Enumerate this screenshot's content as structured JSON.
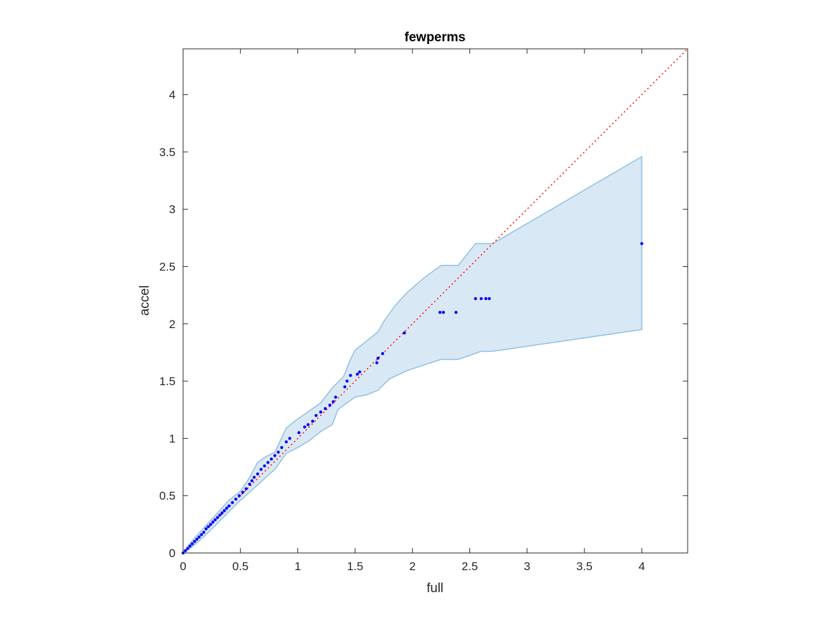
{
  "chart_data": {
    "type": "scatter",
    "title": "fewperms",
    "xlabel": "full",
    "ylabel": "accel",
    "xlim": [
      0,
      4.4
    ],
    "ylim": [
      0,
      4.4
    ],
    "xticks": [
      0,
      0.5,
      1,
      1.5,
      2,
      2.5,
      3,
      3.5,
      4
    ],
    "yticks": [
      0,
      0.5,
      1,
      1.5,
      2,
      2.5,
      3,
      3.5,
      4
    ],
    "xtick_labels": [
      "0",
      "0.5",
      "1",
      "1.5",
      "2",
      "2.5",
      "3",
      "3.5",
      "4"
    ],
    "ytick_labels": [
      "0",
      "0.5",
      "1",
      "1.5",
      "2",
      "2.5",
      "3",
      "3.5",
      "4"
    ],
    "grid": false,
    "colors": {
      "points": "#0000ff",
      "reference_line": "#ff0000",
      "band_fill": "#d9e8f5",
      "band_edge": "#8fc0e0",
      "axes": "#262626"
    },
    "reference_line": {
      "style": "dotted",
      "x": [
        0,
        4.4
      ],
      "y": [
        0,
        4.4
      ]
    },
    "band": {
      "upper": [
        [
          0,
          0
        ],
        [
          0.05,
          0.07
        ],
        [
          0.1,
          0.13
        ],
        [
          0.2,
          0.24
        ],
        [
          0.3,
          0.35
        ],
        [
          0.4,
          0.46
        ],
        [
          0.5,
          0.54
        ],
        [
          0.58,
          0.66
        ],
        [
          0.65,
          0.79
        ],
        [
          0.72,
          0.84
        ],
        [
          0.8,
          0.88
        ],
        [
          0.9,
          1.09
        ],
        [
          1.0,
          1.17
        ],
        [
          1.1,
          1.24
        ],
        [
          1.2,
          1.31
        ],
        [
          1.3,
          1.44
        ],
        [
          1.4,
          1.54
        ],
        [
          1.45,
          1.67
        ],
        [
          1.5,
          1.77
        ],
        [
          1.55,
          1.81
        ],
        [
          1.7,
          1.93
        ],
        [
          1.75,
          2.02
        ],
        [
          1.85,
          2.16
        ],
        [
          1.95,
          2.27
        ],
        [
          2.1,
          2.4
        ],
        [
          2.25,
          2.51
        ],
        [
          2.4,
          2.51
        ],
        [
          2.55,
          2.7
        ],
        [
          2.7,
          2.7
        ],
        [
          4.0,
          3.46
        ]
      ],
      "lower": [
        [
          0,
          0
        ],
        [
          0.05,
          0.03
        ],
        [
          0.1,
          0.07
        ],
        [
          0.2,
          0.16
        ],
        [
          0.3,
          0.26
        ],
        [
          0.4,
          0.36
        ],
        [
          0.5,
          0.46
        ],
        [
          0.6,
          0.55
        ],
        [
          0.7,
          0.64
        ],
        [
          0.8,
          0.73
        ],
        [
          0.9,
          0.87
        ],
        [
          1.0,
          0.92
        ],
        [
          1.1,
          0.98
        ],
        [
          1.2,
          1.06
        ],
        [
          1.3,
          1.12
        ],
        [
          1.35,
          1.25
        ],
        [
          1.4,
          1.29
        ],
        [
          1.5,
          1.36
        ],
        [
          1.6,
          1.38
        ],
        [
          1.7,
          1.42
        ],
        [
          1.8,
          1.52
        ],
        [
          1.95,
          1.59
        ],
        [
          2.1,
          1.64
        ],
        [
          2.25,
          1.69
        ],
        [
          2.4,
          1.69
        ],
        [
          2.6,
          1.76
        ],
        [
          2.7,
          1.76
        ],
        [
          4.0,
          1.95
        ]
      ]
    },
    "points": {
      "x": [
        0.0,
        0.02,
        0.04,
        0.06,
        0.08,
        0.1,
        0.12,
        0.14,
        0.16,
        0.18,
        0.2,
        0.22,
        0.24,
        0.26,
        0.28,
        0.3,
        0.32,
        0.34,
        0.36,
        0.38,
        0.4,
        0.43,
        0.46,
        0.49,
        0.52,
        0.55,
        0.58,
        0.6,
        0.62,
        0.65,
        0.68,
        0.71,
        0.74,
        0.77,
        0.8,
        0.83,
        0.86,
        0.9,
        0.93,
        1.01,
        1.06,
        1.09,
        1.13,
        1.16,
        1.2,
        1.24,
        1.28,
        1.31,
        1.33,
        1.41,
        1.43,
        1.46,
        1.52,
        1.54,
        1.69,
        1.7,
        1.74,
        1.93,
        2.24,
        2.27,
        2.38,
        2.55,
        2.6,
        2.64,
        2.67,
        4.0
      ],
      "y": [
        0.0,
        0.02,
        0.04,
        0.06,
        0.08,
        0.1,
        0.12,
        0.14,
        0.16,
        0.18,
        0.21,
        0.23,
        0.25,
        0.27,
        0.29,
        0.31,
        0.33,
        0.35,
        0.37,
        0.39,
        0.41,
        0.44,
        0.47,
        0.5,
        0.53,
        0.56,
        0.6,
        0.63,
        0.66,
        0.69,
        0.73,
        0.76,
        0.79,
        0.82,
        0.85,
        0.88,
        0.92,
        0.97,
        1.0,
        1.05,
        1.1,
        1.12,
        1.15,
        1.2,
        1.23,
        1.26,
        1.29,
        1.32,
        1.36,
        1.45,
        1.5,
        1.55,
        1.56,
        1.58,
        1.66,
        1.7,
        1.74,
        1.92,
        2.1,
        2.1,
        2.1,
        2.22,
        2.22,
        2.22,
        2.22,
        2.7
      ]
    }
  }
}
